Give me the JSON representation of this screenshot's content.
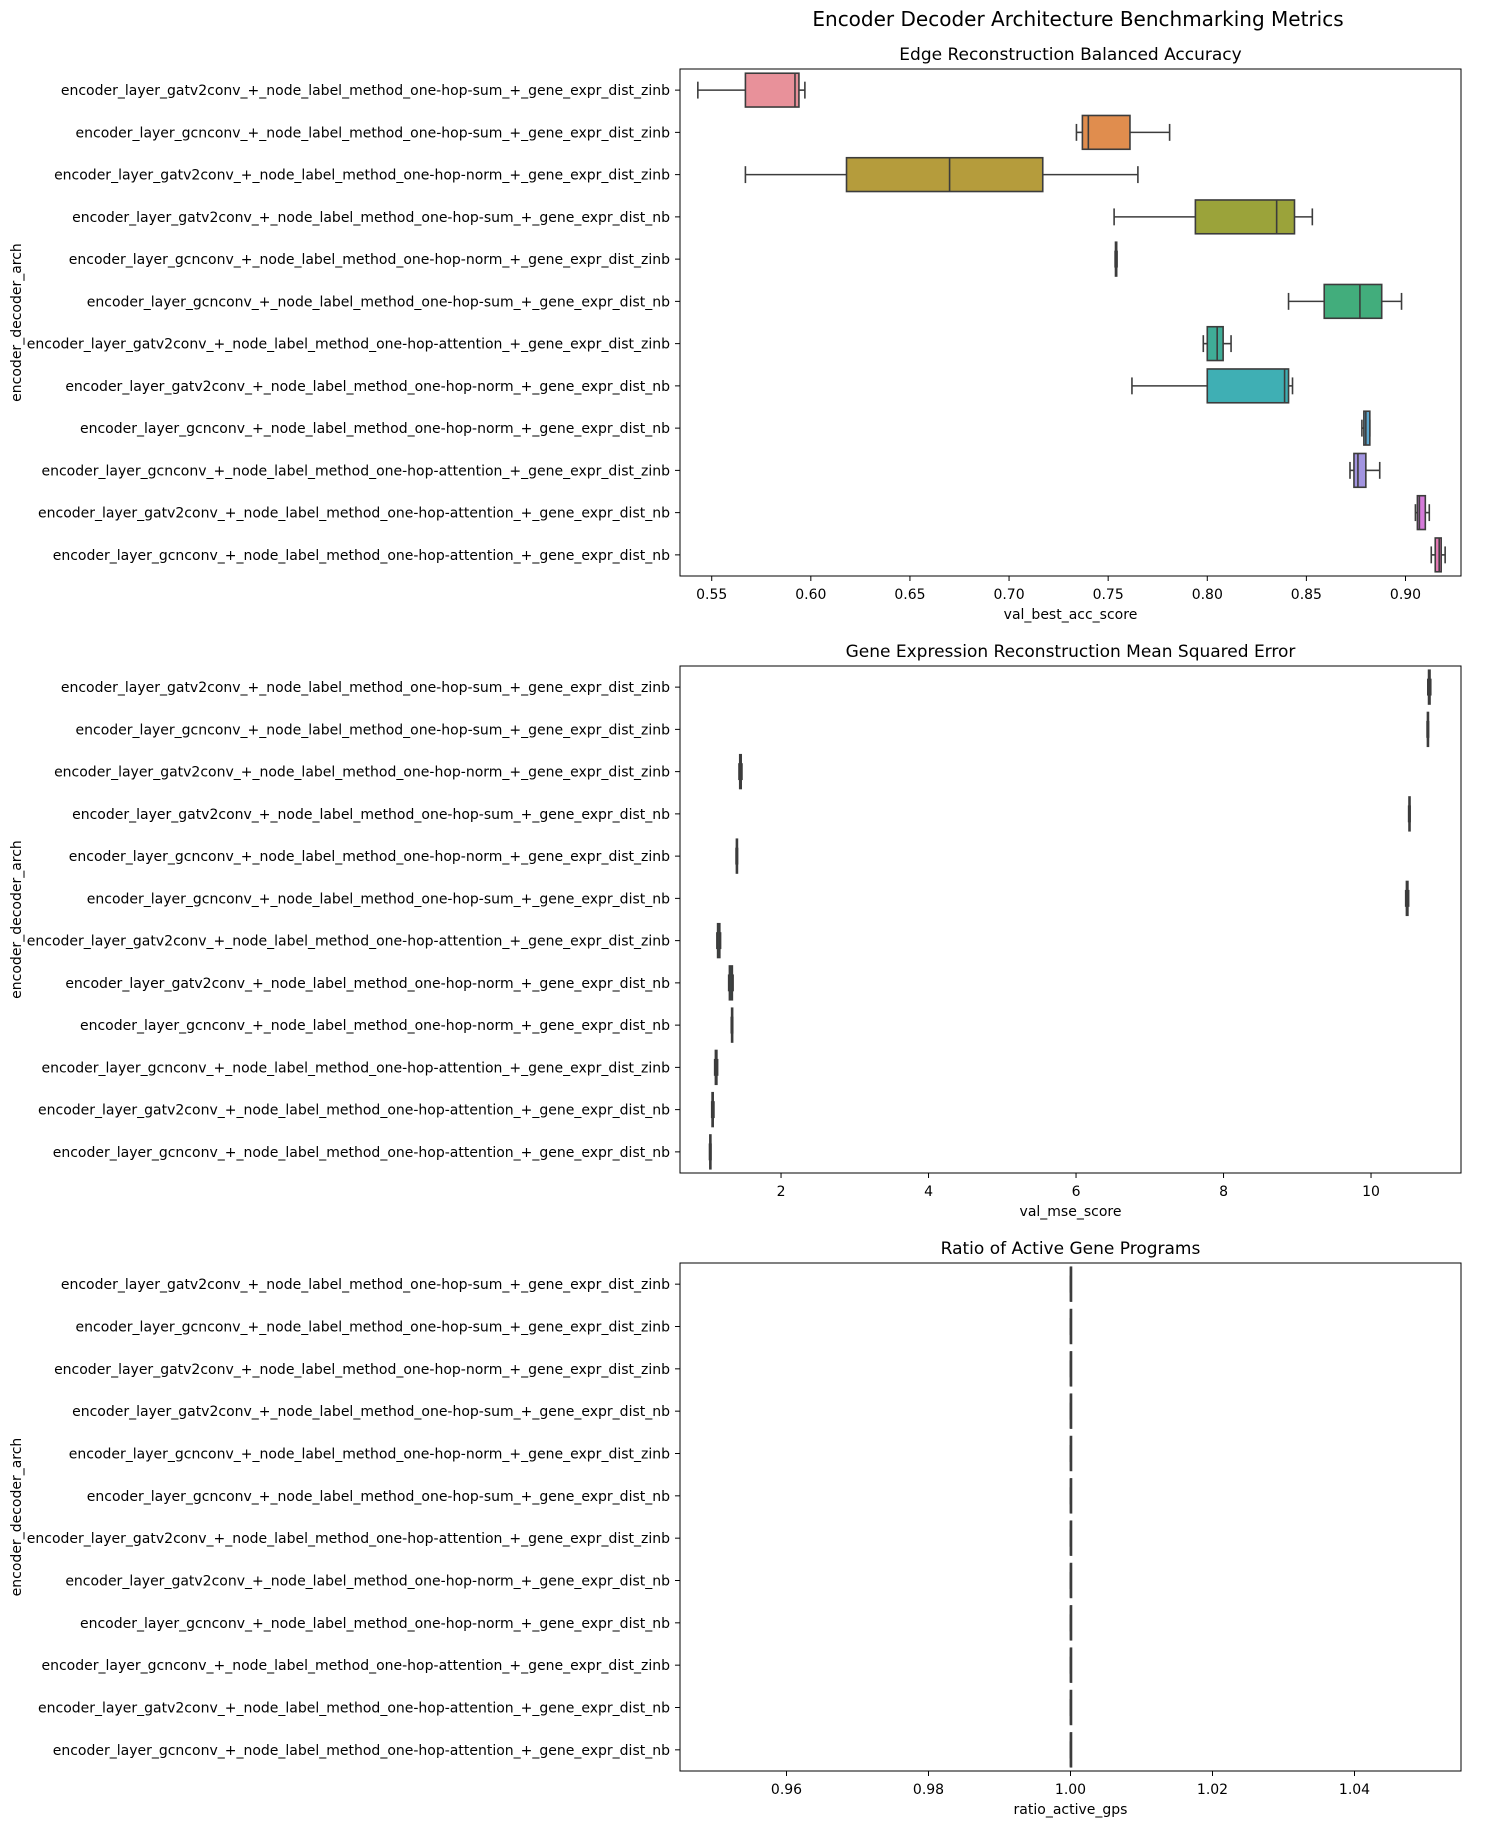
{
  "figure_title": "Encoder Decoder Architecture Benchmarking Metrics",
  "colors": [
    "#e8919a",
    "#e08d4e",
    "#b59c3c",
    "#9ba33a",
    "#5aa544",
    "#42ad7c",
    "#3fad97",
    "#3fafb4",
    "#5ca7cf",
    "#a294e0",
    "#d57ad9",
    "#e57bb5"
  ],
  "chart_data": [
    {
      "type": "box",
      "orientation": "horizontal",
      "title": "Edge Reconstruction Balanced Accuracy",
      "xlabel": "val_best_acc_score",
      "ylabel": "encoder_decoder_arch",
      "xlim": [
        0.534,
        0.928
      ],
      "xticks": [
        0.55,
        0.6,
        0.65,
        0.7,
        0.75,
        0.8,
        0.85,
        0.9
      ],
      "xtick_labels": [
        "0.55",
        "0.60",
        "0.65",
        "0.70",
        "0.75",
        "0.80",
        "0.85",
        "0.90"
      ],
      "categories": [
        "encoder_layer_gatv2conv_+_node_label_method_one-hop-sum_+_gene_expr_dist_zinb",
        "encoder_layer_gcnconv_+_node_label_method_one-hop-sum_+_gene_expr_dist_zinb",
        "encoder_layer_gatv2conv_+_node_label_method_one-hop-norm_+_gene_expr_dist_zinb",
        "encoder_layer_gatv2conv_+_node_label_method_one-hop-sum_+_gene_expr_dist_nb",
        "encoder_layer_gcnconv_+_node_label_method_one-hop-norm_+_gene_expr_dist_zinb",
        "encoder_layer_gcnconv_+_node_label_method_one-hop-sum_+_gene_expr_dist_nb",
        "encoder_layer_gatv2conv_+_node_label_method_one-hop-attention_+_gene_expr_dist_zinb",
        "encoder_layer_gatv2conv_+_node_label_method_one-hop-norm_+_gene_expr_dist_nb",
        "encoder_layer_gcnconv_+_node_label_method_one-hop-norm_+_gene_expr_dist_nb",
        "encoder_layer_gcnconv_+_node_label_method_one-hop-attention_+_gene_expr_dist_zinb",
        "encoder_layer_gatv2conv_+_node_label_method_one-hop-attention_+_gene_expr_dist_nb",
        "encoder_layer_gcnconv_+_node_label_method_one-hop-attention_+_gene_expr_dist_nb"
      ],
      "boxes": [
        {
          "min": 0.543,
          "q1": 0.567,
          "median": 0.592,
          "q3": 0.594,
          "max": 0.597
        },
        {
          "min": 0.734,
          "q1": 0.737,
          "median": 0.74,
          "q3": 0.761,
          "max": 0.781
        },
        {
          "min": 0.567,
          "q1": 0.618,
          "median": 0.67,
          "q3": 0.717,
          "max": 0.765
        },
        {
          "min": 0.753,
          "q1": 0.794,
          "median": 0.835,
          "q3": 0.844,
          "max": 0.853
        },
        {
          "min": 0.7535,
          "q1": 0.7537,
          "median": 0.754,
          "q3": 0.7543,
          "max": 0.7545
        },
        {
          "min": 0.841,
          "q1": 0.859,
          "median": 0.877,
          "q3": 0.888,
          "max": 0.898
        },
        {
          "min": 0.798,
          "q1": 0.8,
          "median": 0.805,
          "q3": 0.808,
          "max": 0.812
        },
        {
          "min": 0.762,
          "q1": 0.8,
          "median": 0.839,
          "q3": 0.841,
          "max": 0.843
        },
        {
          "min": 0.878,
          "q1": 0.879,
          "median": 0.88,
          "q3": 0.882,
          "max": 0.882
        },
        {
          "min": 0.872,
          "q1": 0.874,
          "median": 0.876,
          "q3": 0.88,
          "max": 0.887
        },
        {
          "min": 0.905,
          "q1": 0.906,
          "median": 0.907,
          "q3": 0.91,
          "max": 0.912
        },
        {
          "min": 0.913,
          "q1": 0.915,
          "median": 0.917,
          "q3": 0.918,
          "max": 0.92
        }
      ]
    },
    {
      "type": "box",
      "orientation": "horizontal",
      "title": "Gene Expression Reconstruction Mean Squared Error",
      "xlabel": "val_mse_score",
      "ylabel": "encoder_decoder_arch",
      "xlim": [
        0.63,
        11.22
      ],
      "xticks": [
        2,
        4,
        6,
        8,
        10
      ],
      "xtick_labels": [
        "2",
        "4",
        "6",
        "8",
        "10"
      ],
      "categories": [
        "encoder_layer_gatv2conv_+_node_label_method_one-hop-sum_+_gene_expr_dist_zinb",
        "encoder_layer_gcnconv_+_node_label_method_one-hop-sum_+_gene_expr_dist_zinb",
        "encoder_layer_gatv2conv_+_node_label_method_one-hop-norm_+_gene_expr_dist_zinb",
        "encoder_layer_gatv2conv_+_node_label_method_one-hop-sum_+_gene_expr_dist_nb",
        "encoder_layer_gcnconv_+_node_label_method_one-hop-norm_+_gene_expr_dist_zinb",
        "encoder_layer_gcnconv_+_node_label_method_one-hop-sum_+_gene_expr_dist_nb",
        "encoder_layer_gatv2conv_+_node_label_method_one-hop-attention_+_gene_expr_dist_zinb",
        "encoder_layer_gatv2conv_+_node_label_method_one-hop-norm_+_gene_expr_dist_nb",
        "encoder_layer_gcnconv_+_node_label_method_one-hop-norm_+_gene_expr_dist_nb",
        "encoder_layer_gcnconv_+_node_label_method_one-hop-attention_+_gene_expr_dist_zinb",
        "encoder_layer_gatv2conv_+_node_label_method_one-hop-attention_+_gene_expr_dist_nb",
        "encoder_layer_gcnconv_+_node_label_method_one-hop-attention_+_gene_expr_dist_nb"
      ],
      "boxes": [
        {
          "min": 10.77,
          "q1": 10.78,
          "median": 10.79,
          "q3": 10.8,
          "max": 10.81
        },
        {
          "min": 10.76,
          "q1": 10.765,
          "median": 10.77,
          "q3": 10.775,
          "max": 10.78
        },
        {
          "min": 1.43,
          "q1": 1.44,
          "median": 1.45,
          "q3": 1.46,
          "max": 1.47
        },
        {
          "min": 10.51,
          "q1": 10.515,
          "median": 10.52,
          "q3": 10.525,
          "max": 10.53
        },
        {
          "min": 1.39,
          "q1": 1.395,
          "median": 1.4,
          "q3": 1.405,
          "max": 1.41
        },
        {
          "min": 10.47,
          "q1": 10.48,
          "median": 10.49,
          "q3": 10.5,
          "max": 10.51
        },
        {
          "min": 1.13,
          "q1": 1.14,
          "median": 1.16,
          "q3": 1.17,
          "max": 1.18
        },
        {
          "min": 1.29,
          "q1": 1.3,
          "median": 1.32,
          "q3": 1.34,
          "max": 1.35
        },
        {
          "min": 1.325,
          "q1": 1.33,
          "median": 1.335,
          "q3": 1.34,
          "max": 1.345
        },
        {
          "min": 1.1,
          "q1": 1.11,
          "median": 1.12,
          "q3": 1.13,
          "max": 1.14
        },
        {
          "min": 1.06,
          "q1": 1.065,
          "median": 1.07,
          "q3": 1.08,
          "max": 1.09
        },
        {
          "min": 1.03,
          "q1": 1.035,
          "median": 1.04,
          "q3": 1.045,
          "max": 1.05
        }
      ]
    },
    {
      "type": "box",
      "orientation": "horizontal",
      "title": "Ratio of Active Gene Programs",
      "xlabel": "ratio_active_gps",
      "ylabel": "encoder_decoder_arch",
      "xlim": [
        0.945,
        1.055
      ],
      "xticks": [
        0.96,
        0.98,
        1.0,
        1.02,
        1.04
      ],
      "xtick_labels": [
        "0.96",
        "0.98",
        "1.00",
        "1.02",
        "1.04"
      ],
      "categories": [
        "encoder_layer_gatv2conv_+_node_label_method_one-hop-sum_+_gene_expr_dist_zinb",
        "encoder_layer_gcnconv_+_node_label_method_one-hop-sum_+_gene_expr_dist_zinb",
        "encoder_layer_gatv2conv_+_node_label_method_one-hop-norm_+_gene_expr_dist_zinb",
        "encoder_layer_gatv2conv_+_node_label_method_one-hop-sum_+_gene_expr_dist_nb",
        "encoder_layer_gcnconv_+_node_label_method_one-hop-norm_+_gene_expr_dist_zinb",
        "encoder_layer_gcnconv_+_node_label_method_one-hop-sum_+_gene_expr_dist_nb",
        "encoder_layer_gatv2conv_+_node_label_method_one-hop-attention_+_gene_expr_dist_zinb",
        "encoder_layer_gatv2conv_+_node_label_method_one-hop-norm_+_gene_expr_dist_nb",
        "encoder_layer_gcnconv_+_node_label_method_one-hop-norm_+_gene_expr_dist_nb",
        "encoder_layer_gcnconv_+_node_label_method_one-hop-attention_+_gene_expr_dist_zinb",
        "encoder_layer_gatv2conv_+_node_label_method_one-hop-attention_+_gene_expr_dist_nb",
        "encoder_layer_gcnconv_+_node_label_method_one-hop-attention_+_gene_expr_dist_nb"
      ],
      "boxes": [
        {
          "min": 1.0,
          "q1": 1.0,
          "median": 1.0,
          "q3": 1.0,
          "max": 1.0
        },
        {
          "min": 1.0,
          "q1": 1.0,
          "median": 1.0,
          "q3": 1.0,
          "max": 1.0
        },
        {
          "min": 1.0,
          "q1": 1.0,
          "median": 1.0,
          "q3": 1.0,
          "max": 1.0
        },
        {
          "min": 1.0,
          "q1": 1.0,
          "median": 1.0,
          "q3": 1.0,
          "max": 1.0
        },
        {
          "min": 1.0,
          "q1": 1.0,
          "median": 1.0,
          "q3": 1.0,
          "max": 1.0
        },
        {
          "min": 1.0,
          "q1": 1.0,
          "median": 1.0,
          "q3": 1.0,
          "max": 1.0
        },
        {
          "min": 1.0,
          "q1": 1.0,
          "median": 1.0,
          "q3": 1.0,
          "max": 1.0
        },
        {
          "min": 1.0,
          "q1": 1.0,
          "median": 1.0,
          "q3": 1.0,
          "max": 1.0
        },
        {
          "min": 1.0,
          "q1": 1.0,
          "median": 1.0,
          "q3": 1.0,
          "max": 1.0
        },
        {
          "min": 1.0,
          "q1": 1.0,
          "median": 1.0,
          "q3": 1.0,
          "max": 1.0
        },
        {
          "min": 1.0,
          "q1": 1.0,
          "median": 1.0,
          "q3": 1.0,
          "max": 1.0
        },
        {
          "min": 1.0,
          "q1": 1.0,
          "median": 1.0,
          "q3": 1.0,
          "max": 1.0
        }
      ]
    }
  ]
}
